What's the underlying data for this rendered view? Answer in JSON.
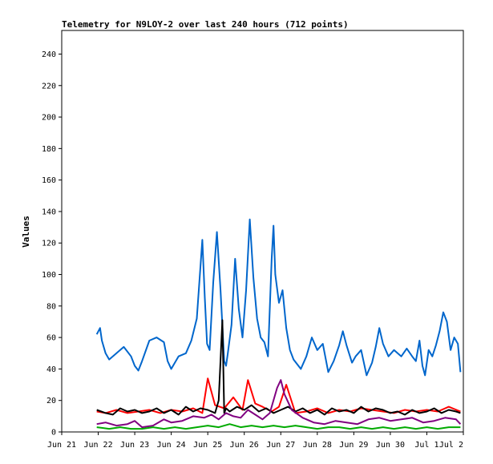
{
  "chart_data": {
    "type": "line",
    "title": "Telemetry for N9LOY-2 over last 240 hours (712 points)",
    "xlabel": "",
    "ylabel": "Values",
    "ylim": [
      0,
      255
    ],
    "xlim": [
      "Jun 21",
      "Jul 2"
    ],
    "yticks": [
      0,
      20,
      40,
      60,
      80,
      100,
      120,
      140,
      160,
      180,
      200,
      220,
      240
    ],
    "xticks": [
      "Jun 21",
      "Jun 22",
      "Jun 23",
      "Jun 24",
      "Jun 25",
      "Jun 26",
      "Jun 27",
      "Jun 28",
      "Jun 29",
      "Jun 30",
      "Jul 1",
      "Jul 2"
    ],
    "grid": false,
    "legend": "none",
    "series": [
      {
        "color": "#0066cc",
        "x": [
          0.96,
          1.05,
          1.1,
          1.2,
          1.3,
          1.5,
          1.7,
          1.9,
          2.0,
          2.1,
          2.2,
          2.4,
          2.6,
          2.8,
          2.9,
          3.0,
          3.2,
          3.4,
          3.55,
          3.7,
          3.85,
          3.92,
          3.98,
          4.05,
          4.15,
          4.25,
          4.35,
          4.45,
          4.5,
          4.55,
          4.65,
          4.75,
          4.85,
          4.95,
          5.05,
          5.15,
          5.25,
          5.35,
          5.45,
          5.55,
          5.65,
          5.75,
          5.8,
          5.85,
          5.95,
          6.05,
          6.15,
          6.25,
          6.35,
          6.55,
          6.7,
          6.85,
          7.0,
          7.15,
          7.3,
          7.45,
          7.6,
          7.7,
          7.8,
          7.95,
          8.05,
          8.2,
          8.35,
          8.5,
          8.6,
          8.7,
          8.8,
          8.95,
          9.1,
          9.3,
          9.45,
          9.6,
          9.7,
          9.8,
          9.88,
          9.95,
          10.05,
          10.15,
          10.25,
          10.35,
          10.45,
          10.55,
          10.65,
          10.75,
          10.85,
          10.92
        ],
        "values": [
          62,
          66,
          58,
          50,
          46,
          50,
          54,
          48,
          42,
          39,
          45,
          58,
          60,
          57,
          45,
          40,
          48,
          50,
          58,
          72,
          122,
          85,
          56,
          52,
          95,
          127,
          90,
          45,
          42,
          50,
          68,
          110,
          78,
          60,
          90,
          135,
          98,
          72,
          60,
          57,
          48,
          110,
          131,
          100,
          82,
          90,
          66,
          52,
          46,
          40,
          48,
          60,
          52,
          56,
          38,
          45,
          55,
          64,
          55,
          44,
          48,
          52,
          36,
          44,
          54,
          66,
          56,
          48,
          52,
          48,
          53,
          48,
          45,
          58,
          42,
          36,
          52,
          48,
          55,
          64,
          76,
          70,
          52,
          60,
          56,
          38
        ],
        "name": ""
      },
      {
        "color": "#ff0000",
        "x": [
          0.96,
          1.2,
          1.5,
          1.8,
          2.1,
          2.4,
          2.7,
          3.0,
          3.3,
          3.6,
          3.85,
          4.0,
          4.2,
          4.45,
          4.7,
          4.95,
          5.1,
          5.3,
          5.5,
          5.75,
          5.95,
          6.15,
          6.4,
          6.7,
          7.0,
          7.3,
          7.6,
          7.9,
          8.2,
          8.5,
          8.8,
          9.1,
          9.4,
          9.7,
          10.0,
          10.3,
          10.6,
          10.92
        ],
        "values": [
          13,
          12,
          14,
          12,
          13,
          14,
          12,
          14,
          13,
          15,
          12,
          34,
          17,
          15,
          22,
          14,
          33,
          18,
          16,
          13,
          16,
          30,
          12,
          13,
          15,
          12,
          14,
          13,
          15,
          14,
          13,
          12,
          14,
          13,
          14,
          13,
          16,
          13
        ],
        "name": ""
      },
      {
        "color": "#000000",
        "x": [
          0.96,
          1.2,
          1.4,
          1.6,
          1.8,
          2.0,
          2.2,
          2.4,
          2.6,
          2.8,
          3.0,
          3.2,
          3.4,
          3.6,
          3.8,
          4.0,
          4.2,
          4.3,
          4.4,
          4.45,
          4.5,
          4.6,
          4.8,
          5.0,
          5.2,
          5.4,
          5.6,
          5.8,
          6.0,
          6.2,
          6.4,
          6.6,
          6.8,
          7.0,
          7.2,
          7.4,
          7.6,
          7.8,
          8.0,
          8.2,
          8.4,
          8.6,
          8.8,
          9.0,
          9.2,
          9.4,
          9.6,
          9.8,
          10.0,
          10.2,
          10.4,
          10.6,
          10.8,
          10.92
        ],
        "values": [
          14,
          12,
          11,
          15,
          13,
          14,
          12,
          13,
          15,
          12,
          14,
          11,
          16,
          13,
          15,
          14,
          12,
          20,
          71,
          12,
          15,
          13,
          16,
          14,
          17,
          13,
          15,
          12,
          14,
          16,
          13,
          15,
          12,
          14,
          11,
          15,
          13,
          14,
          12,
          16,
          13,
          15,
          14,
          12,
          13,
          11,
          14,
          12,
          13,
          15,
          12,
          14,
          13,
          12
        ],
        "name": ""
      },
      {
        "color": "#800080",
        "x": [
          0.96,
          1.2,
          1.5,
          1.8,
          2.0,
          2.2,
          2.5,
          2.8,
          3.0,
          3.3,
          3.6,
          3.9,
          4.1,
          4.3,
          4.5,
          4.7,
          4.9,
          5.1,
          5.3,
          5.5,
          5.7,
          5.9,
          6.0,
          6.1,
          6.3,
          6.6,
          6.9,
          7.2,
          7.5,
          7.8,
          8.1,
          8.4,
          8.7,
          9.0,
          9.3,
          9.6,
          9.9,
          10.2,
          10.5,
          10.8,
          10.92
        ],
        "values": [
          5,
          6,
          4,
          5,
          7,
          3,
          4,
          8,
          6,
          7,
          10,
          9,
          11,
          8,
          12,
          10,
          9,
          14,
          11,
          8,
          12,
          28,
          33,
          24,
          14,
          9,
          6,
          5,
          7,
          6,
          5,
          8,
          9,
          7,
          8,
          9,
          6,
          7,
          9,
          8,
          5
        ],
        "name": ""
      },
      {
        "color": "#00aa00",
        "x": [
          0.96,
          1.3,
          1.6,
          1.9,
          2.2,
          2.5,
          2.8,
          3.1,
          3.4,
          3.7,
          4.0,
          4.3,
          4.6,
          4.9,
          5.2,
          5.5,
          5.8,
          6.1,
          6.4,
          6.7,
          7.0,
          7.3,
          7.6,
          7.9,
          8.2,
          8.5,
          8.8,
          9.1,
          9.4,
          9.7,
          10.0,
          10.3,
          10.6,
          10.92
        ],
        "values": [
          3,
          2,
          3,
          2,
          2,
          3,
          2,
          3,
          2,
          3,
          4,
          3,
          5,
          3,
          4,
          3,
          4,
          3,
          4,
          3,
          2,
          3,
          3,
          2,
          3,
          2,
          3,
          2,
          3,
          2,
          3,
          2,
          3,
          3
        ],
        "name": ""
      }
    ]
  }
}
